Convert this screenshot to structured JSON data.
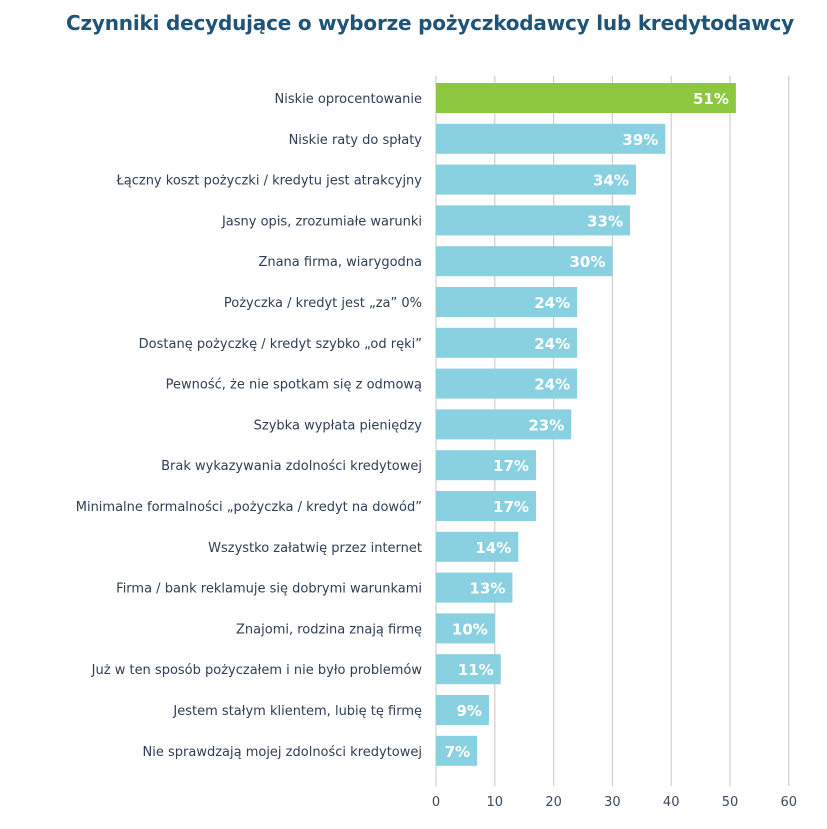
{
  "chart_data": {
    "type": "bar",
    "orientation": "horizontal",
    "title": "Czynniki decydujące o wyborze pożyczkodawcy lub kredytodawcy",
    "categories": [
      "Niskie oprocentowanie",
      "Niskie raty do spłaty",
      "Łączny koszt pożyczki / kredytu jest atrakcyjny",
      "Jasny opis, zrozumiałe warunki",
      "Znana firma, wiarygodna",
      "Pożyczka / kredyt jest „za” 0%",
      "Dostanę pożyczkę / kredyt szybko „od ręki”",
      "Pewność, że nie spotkam się z odmową",
      "Szybka wypłata pieniędzy",
      "Brak wykazywania zdolności kredytowej",
      "Minimalne formalności „pożyczka / kredyt na dowód”",
      "Wszystko załatwię przez internet",
      "Firma / bank reklamuje się dobrymi warunkami",
      "Znajomi, rodzina znają firmę",
      "Już w ten sposób pożyczałem i nie było problemów",
      "Jestem stałym klientem, lubię tę firmę",
      "Nie sprawdzają mojej zdolności kredytowej"
    ],
    "values": [
      51,
      39,
      34,
      33,
      30,
      24,
      24,
      24,
      23,
      17,
      17,
      14,
      13,
      10,
      11,
      9,
      7
    ],
    "value_labels": [
      "51%",
      "39%",
      "34%",
      "33%",
      "30%",
      "24%",
      "24%",
      "24%",
      "23%",
      "17%",
      "17%",
      "14%",
      "13%",
      "10%",
      "11%",
      "9%",
      "7%"
    ],
    "xlim": [
      0,
      60
    ],
    "xticks": [
      "0",
      "10",
      "20",
      "30",
      "40",
      "50",
      "60"
    ],
    "grid": true,
    "colors": {
      "highlight": "#8dc63f",
      "bar": "#89d0e0",
      "title": "#1f5478"
    },
    "highlight_index": 0
  }
}
